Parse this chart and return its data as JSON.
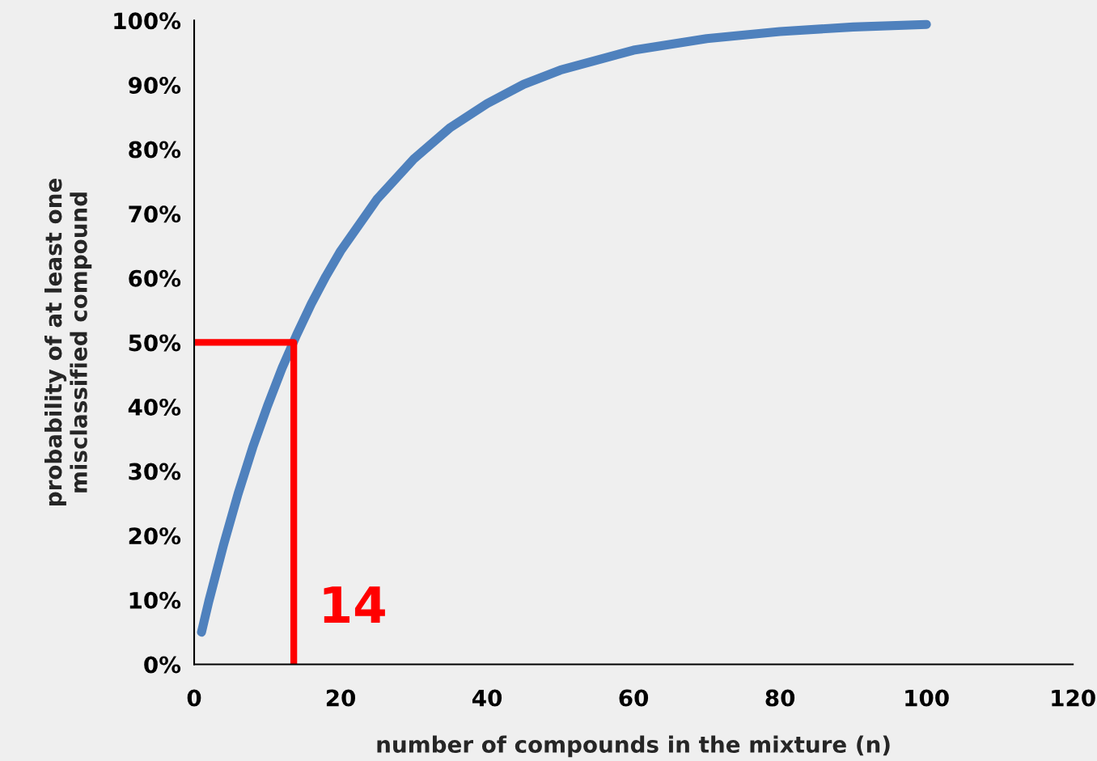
{
  "chart_data": {
    "type": "line",
    "xlabel": "number of compounds in the mixture (n)",
    "ylabel": "probability of at least one\nmisclassified compound",
    "series": [
      {
        "color": "#4f81bd",
        "x": [
          1,
          2,
          4,
          6,
          8,
          10,
          12,
          14,
          16,
          18,
          20,
          25,
          30,
          35,
          40,
          45,
          50,
          60,
          70,
          80,
          90,
          100
        ],
        "values": [
          5.0,
          9.8,
          18.5,
          26.5,
          33.7,
          40.1,
          46.0,
          51.2,
          56.0,
          60.3,
          64.2,
          72.3,
          78.5,
          83.4,
          87.1,
          90.1,
          92.3,
          95.4,
          97.2,
          98.3,
          99.0,
          99.4
        ]
      },
      {
        "color": "#ff0000",
        "x": [
          0,
          13.6,
          13.6
        ],
        "values": [
          50,
          50,
          0
        ]
      }
    ],
    "annotations": [
      {
        "text": "14",
        "x": 13.6,
        "y": 0
      }
    ],
    "xlim": [
      0,
      120
    ],
    "xticks": [
      0,
      20,
      40,
      60,
      80,
      100,
      120
    ],
    "ylim": [
      0,
      100
    ],
    "yticks": [
      {
        "value": 0,
        "label": "0%"
      },
      {
        "value": 10,
        "label": "10%"
      },
      {
        "value": 20,
        "label": "20%"
      },
      {
        "value": 30,
        "label": "30%"
      },
      {
        "value": 40,
        "label": "40%"
      },
      {
        "value": 50,
        "label": "50%"
      },
      {
        "value": 60,
        "label": "60%"
      },
      {
        "value": 70,
        "label": "70%"
      },
      {
        "value": 80,
        "label": "80%"
      },
      {
        "value": 90,
        "label": "90%"
      },
      {
        "value": 100,
        "label": "100%"
      }
    ],
    "grid": false,
    "legend": false
  }
}
